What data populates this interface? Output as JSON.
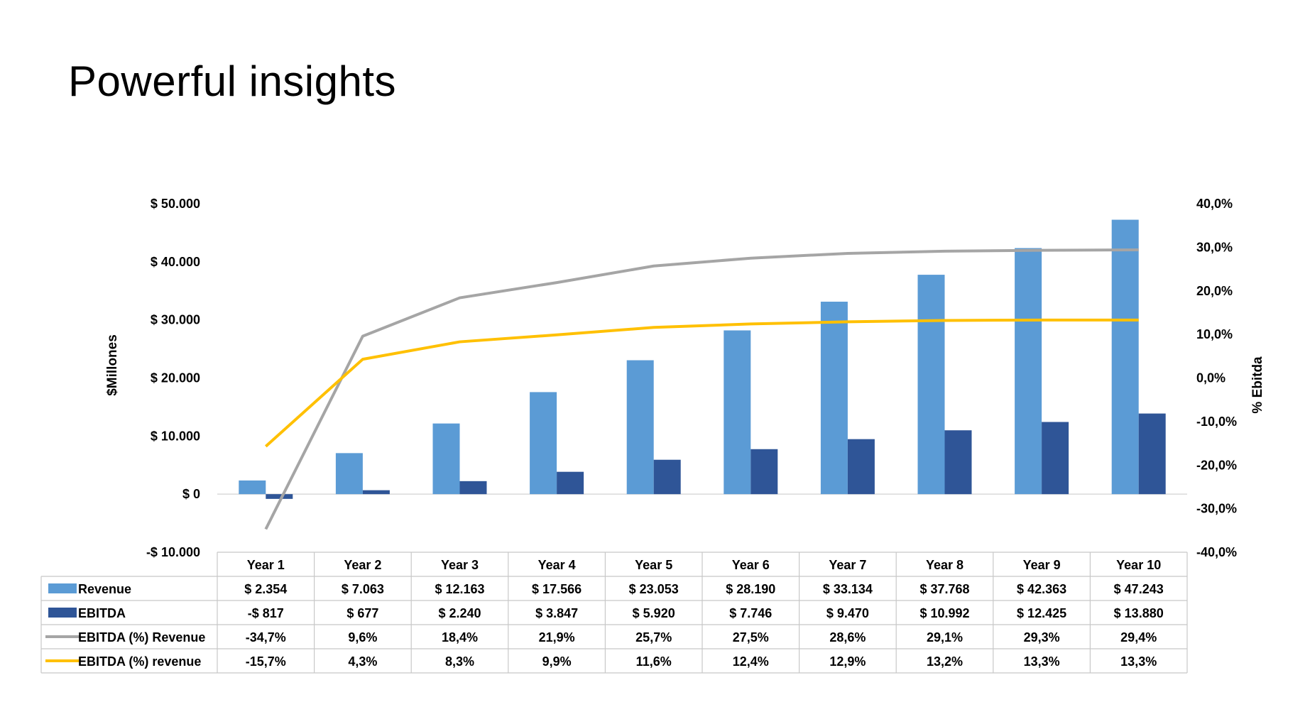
{
  "page": {
    "title": "Powerful insights"
  },
  "colors": {
    "revenue": "#5B9BD5",
    "ebitda": "#2F5597",
    "line_gray": "#A5A5A5",
    "line_yellow": "#FFC000",
    "grid": "#D9D9D9"
  },
  "chart_data": {
    "type": "bar",
    "title": "",
    "categories": [
      "Year 1",
      "Year 2",
      "Year 3",
      "Year 4",
      "Year 5",
      "Year 6",
      "Year 7",
      "Year 8",
      "Year 9",
      "Year 10"
    ],
    "ylabel": "$Millones",
    "y2label": "% Ebitda",
    "ylim": [
      -10000,
      50000
    ],
    "y2lim": [
      -40,
      40
    ],
    "y_ticks": [
      {
        "value": 50000,
        "label": "$ 50.000"
      },
      {
        "value": 40000,
        "label": "$ 40.000"
      },
      {
        "value": 30000,
        "label": "$ 30.000"
      },
      {
        "value": 20000,
        "label": "$ 20.000"
      },
      {
        "value": 10000,
        "label": "$ 10.000"
      },
      {
        "value": 0,
        "label": "$ 0"
      },
      {
        "value": -10000,
        "label": "-$ 10.000"
      }
    ],
    "y2_ticks": [
      {
        "value": 40,
        "label": "40,0%"
      },
      {
        "value": 30,
        "label": "30,0%"
      },
      {
        "value": 20,
        "label": "20,0%"
      },
      {
        "value": 10,
        "label": "10,0%"
      },
      {
        "value": 0,
        "label": "0,0%"
      },
      {
        "value": -10,
        "label": "-10,0%"
      },
      {
        "value": -20,
        "label": "-20,0%"
      },
      {
        "value": -30,
        "label": "-30,0%"
      },
      {
        "value": -40,
        "label": "-40,0%"
      }
    ],
    "series": [
      {
        "name": "Revenue",
        "kind": "bar",
        "axis": "left",
        "color": "#5B9BD5",
        "values": [
          2354,
          7063,
          12163,
          17566,
          23053,
          28190,
          33134,
          37768,
          42363,
          47243
        ],
        "labels": [
          "$ 2.354",
          "$ 7.063",
          "$ 12.163",
          "$ 17.566",
          "$ 23.053",
          "$ 28.190",
          "$ 33.134",
          "$ 37.768",
          "$ 42.363",
          "$ 47.243"
        ]
      },
      {
        "name": "EBITDA",
        "kind": "bar",
        "axis": "left",
        "color": "#2F5597",
        "values": [
          -817,
          677,
          2240,
          3847,
          5920,
          7746,
          9470,
          10992,
          12425,
          13880
        ],
        "labels": [
          "-$ 817",
          "$ 677",
          "$ 2.240",
          "$ 3.847",
          "$ 5.920",
          "$ 7.746",
          "$ 9.470",
          "$ 10.992",
          "$ 12.425",
          "$ 13.880"
        ]
      },
      {
        "name": "EBITDA (%) Revenue",
        "kind": "line",
        "axis": "right",
        "color": "#A5A5A5",
        "values": [
          -34.7,
          9.6,
          18.4,
          21.9,
          25.7,
          27.5,
          28.6,
          29.1,
          29.3,
          29.4
        ],
        "labels": [
          "-34,7%",
          "9,6%",
          "18,4%",
          "21,9%",
          "25,7%",
          "27,5%",
          "28,6%",
          "29,1%",
          "29,3%",
          "29,4%"
        ]
      },
      {
        "name": "EBITDA (%) revenue",
        "kind": "line",
        "axis": "right",
        "color": "#FFC000",
        "values": [
          -15.7,
          4.3,
          8.3,
          9.9,
          11.6,
          12.4,
          12.9,
          13.2,
          13.3,
          13.3
        ],
        "labels": [
          "-15,7%",
          "4,3%",
          "8,3%",
          "9,9%",
          "11,6%",
          "12,4%",
          "12,9%",
          "13,2%",
          "13,3%",
          "13,3%"
        ]
      }
    ],
    "data_table": true
  }
}
